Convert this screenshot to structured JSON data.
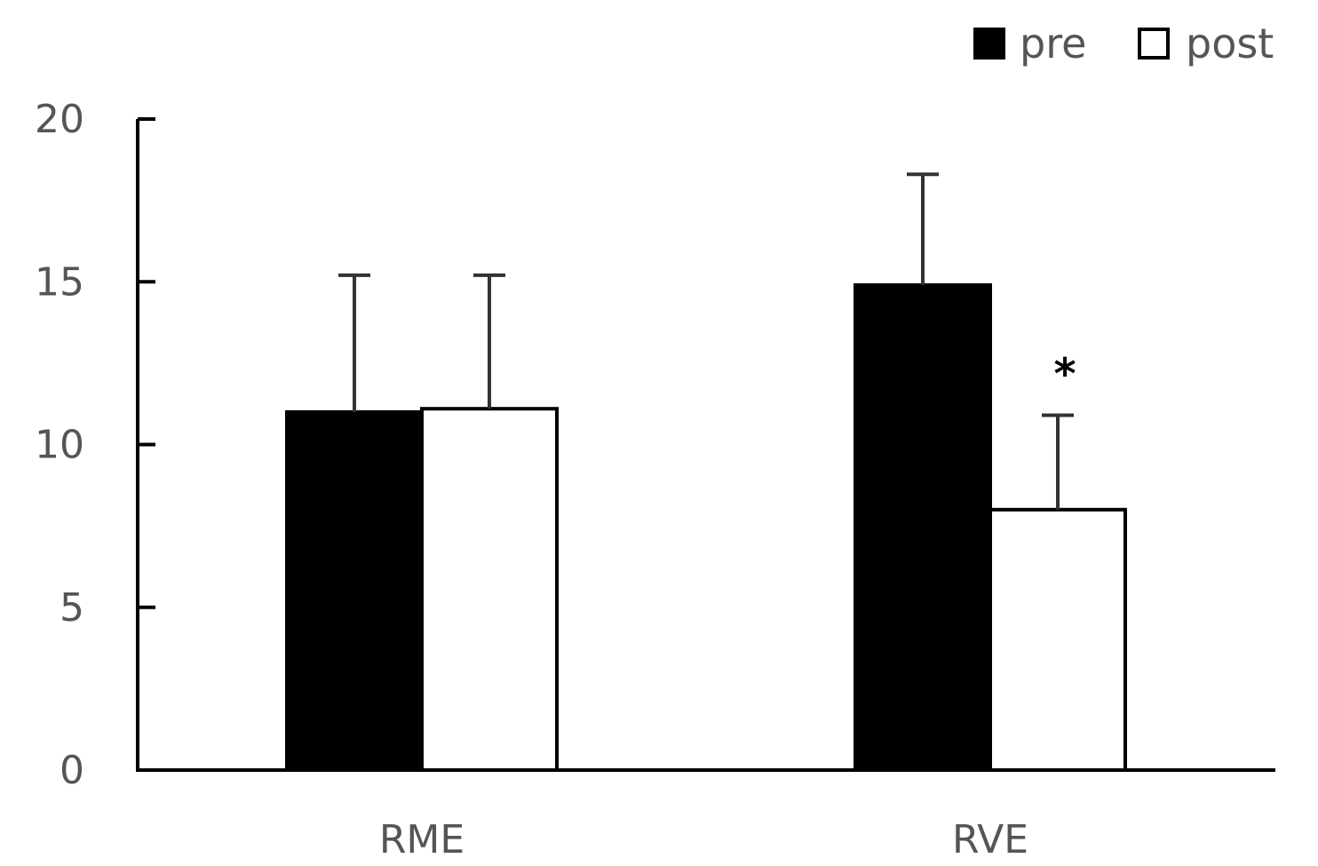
{
  "chart_data": {
    "type": "bar",
    "categories": [
      "RME",
      "RVE"
    ],
    "series": [
      {
        "name": "pre",
        "values": [
          11.0,
          14.9
        ],
        "errors": [
          4.2,
          3.4
        ],
        "color": "#000000"
      },
      {
        "name": "post",
        "values": [
          11.1,
          8.0
        ],
        "errors": [
          4.1,
          2.9
        ],
        "color": "#ffffff"
      }
    ],
    "yticks": [
      "0",
      "5",
      "10",
      "15",
      "20"
    ],
    "ylim": [
      0,
      20
    ],
    "annotations": [
      {
        "text": "*",
        "category": "RVE",
        "series": "post"
      }
    ],
    "legend_position": "top-right",
    "grid": false
  }
}
